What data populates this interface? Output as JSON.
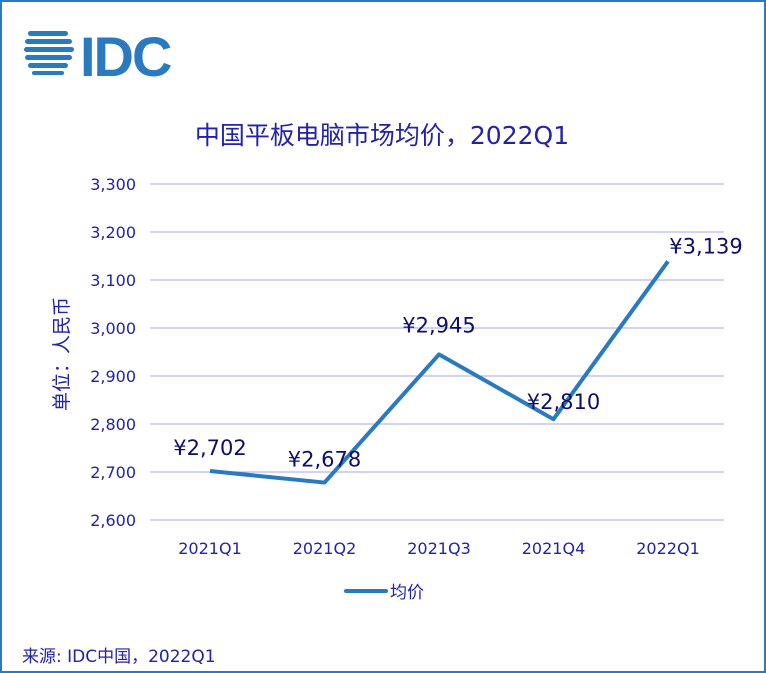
{
  "logo_text": "IDC",
  "colors": {
    "line": "#2a7abf",
    "text": "#2222aa",
    "data_label": "#0d0d6b",
    "grid": "#b8b8ee",
    "border": "#2a7abf"
  },
  "chart_data": {
    "type": "line",
    "title": "中国平板电脑市场均价，2022Q1",
    "ylabel": "单位：人民币",
    "xlabel": "",
    "categories": [
      "2021Q1",
      "2021Q2",
      "2021Q3",
      "2021Q4",
      "2022Q1"
    ],
    "series": [
      {
        "name": "均价",
        "values": [
          2702,
          2678,
          2945,
          2810,
          3139
        ]
      }
    ],
    "data_labels": [
      "¥2,702",
      "¥2,678",
      "¥2,945",
      "¥2,810",
      "¥3,139"
    ],
    "ylim": [
      2600,
      3300
    ],
    "yticks": [
      2600,
      2700,
      2800,
      2900,
      3000,
      3100,
      3200,
      3300
    ],
    "ytick_labels": [
      "2,600",
      "2,700",
      "2,800",
      "2,900",
      "3,000",
      "3,100",
      "3,200",
      "3,300"
    ],
    "grid": true,
    "legend_position": "bottom"
  },
  "source": "来源: IDC中国，2022Q1"
}
